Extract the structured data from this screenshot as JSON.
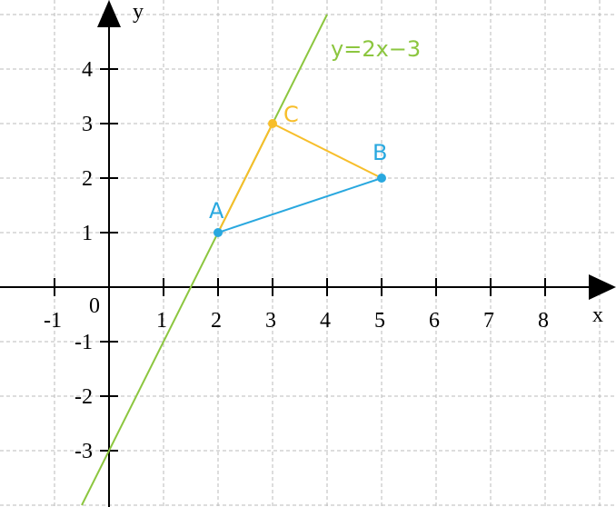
{
  "axes": {
    "x_label": "x",
    "y_label": "y",
    "origin_label": "0",
    "xticks": [
      -1,
      1,
      2,
      3,
      4,
      5,
      6,
      7,
      8
    ],
    "yticks": [
      4,
      3,
      2,
      1,
      -1,
      -2,
      -3
    ]
  },
  "line": {
    "label": "y=2x−3",
    "slope": 2,
    "intercept": -3,
    "color": "#8cc63f"
  },
  "points": [
    {
      "label": "A",
      "x": 2,
      "y": 1,
      "color": "#29a8df"
    },
    {
      "label": "B",
      "x": 5,
      "y": 2,
      "color": "#29a8df"
    },
    {
      "label": "C",
      "x": 3,
      "y": 3,
      "color": "#f7be2a"
    }
  ],
  "segments": [
    {
      "from": "A",
      "to": "B",
      "color": "#29a8df"
    },
    {
      "from": "A",
      "to": "C",
      "color": "#f7be2a"
    },
    {
      "from": "C",
      "to": "B",
      "color": "#f7be2a"
    }
  ]
}
